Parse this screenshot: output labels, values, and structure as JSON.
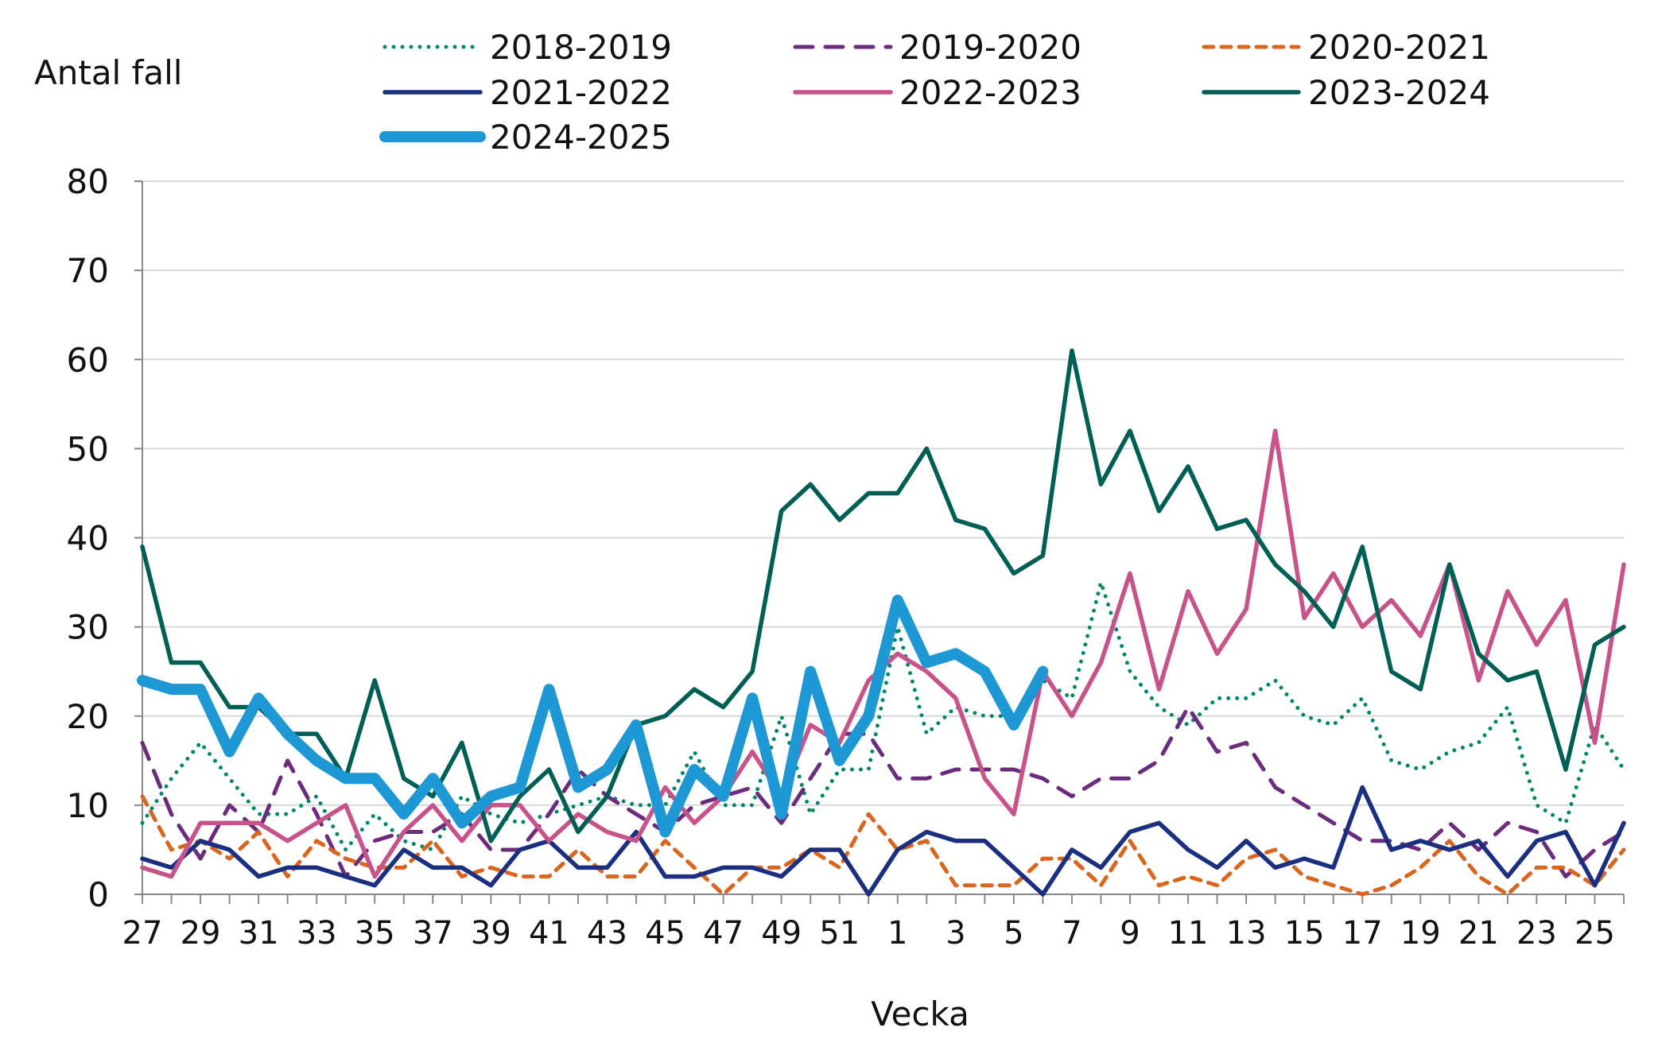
{
  "chart_data": {
    "type": "line",
    "title": "",
    "xlabel": "Vecka",
    "ylabel": "Antal fall",
    "ylim": [
      0,
      80
    ],
    "yticks": [
      0,
      10,
      20,
      30,
      40,
      50,
      60,
      70,
      80
    ],
    "grid": "horizontal",
    "legend_position": "top",
    "weeks": [
      27,
      28,
      29,
      30,
      31,
      32,
      33,
      34,
      35,
      36,
      37,
      38,
      39,
      40,
      41,
      42,
      43,
      44,
      45,
      46,
      47,
      48,
      49,
      50,
      51,
      52,
      1,
      2,
      3,
      4,
      5,
      6,
      7,
      8,
      9,
      10,
      11,
      12,
      13,
      14,
      15,
      16,
      17,
      18,
      19,
      20,
      21,
      22,
      23,
      24,
      25,
      26
    ],
    "xtick_labels": [
      "27",
      "29",
      "31",
      "33",
      "35",
      "37",
      "39",
      "41",
      "43",
      "45",
      "47",
      "49",
      "51",
      "1",
      "3",
      "5",
      "7",
      "9",
      "11",
      "13",
      "15",
      "17",
      "19",
      "21",
      "23",
      "25"
    ],
    "series": [
      {
        "name": "2018-2019",
        "color": "#00866B",
        "style": "dotted",
        "values": [
          8,
          13,
          17,
          13,
          9,
          9,
          11,
          5,
          9,
          6,
          5,
          11,
          9,
          8,
          9,
          10,
          11,
          10,
          10,
          16,
          10,
          10,
          20,
          9,
          14,
          14,
          30,
          18,
          21,
          20,
          20,
          24,
          22,
          35,
          25,
          21,
          19,
          22,
          22,
          24,
          20,
          19,
          22,
          15,
          14,
          16,
          17,
          21,
          10,
          8,
          19,
          14
        ]
      },
      {
        "name": "2019-2020",
        "color": "#6C2C7E",
        "style": "dashed",
        "values": [
          17,
          9,
          4,
          10,
          7,
          15,
          9,
          2,
          6,
          7,
          7,
          9,
          5,
          5,
          9,
          14,
          11,
          9,
          7,
          10,
          11,
          12,
          8,
          13,
          18,
          18,
          13,
          13,
          14,
          14,
          14,
          13,
          11,
          13,
          13,
          15,
          21,
          16,
          17,
          12,
          10,
          8,
          6,
          6,
          5,
          8,
          5,
          8,
          7,
          2,
          5,
          7
        ]
      },
      {
        "name": "2020-2021",
        "color": "#D9661F",
        "style": "short-dashed",
        "values": [
          11,
          5,
          6,
          4,
          7,
          2,
          6,
          4,
          3,
          3,
          6,
          2,
          3,
          2,
          2,
          5,
          2,
          2,
          6,
          3,
          0,
          3,
          3,
          5,
          3,
          9,
          5,
          6,
          1,
          1,
          1,
          4,
          4,
          1,
          6,
          1,
          2,
          1,
          4,
          5,
          2,
          1,
          0,
          1,
          3,
          6,
          2,
          0,
          3,
          3,
          1,
          5
        ]
      },
      {
        "name": "2021-2022",
        "color": "#1B2F80",
        "style": "solid",
        "values": [
          4,
          3,
          6,
          5,
          2,
          3,
          3,
          2,
          1,
          5,
          3,
          3,
          1,
          5,
          6,
          3,
          3,
          7,
          2,
          2,
          3,
          3,
          2,
          5,
          5,
          0,
          5,
          7,
          6,
          6,
          3,
          0,
          5,
          3,
          7,
          8,
          5,
          3,
          6,
          3,
          4,
          3,
          12,
          5,
          6,
          5,
          6,
          2,
          6,
          7,
          1,
          8
        ]
      },
      {
        "name": "2022-2023",
        "color": "#C8528A",
        "style": "solid",
        "values": [
          3,
          2,
          8,
          8,
          8,
          6,
          8,
          10,
          2,
          7,
          10,
          6,
          10,
          10,
          6,
          9,
          7,
          6,
          12,
          8,
          11,
          16,
          11,
          19,
          17,
          24,
          27,
          25,
          22,
          13,
          9,
          25,
          20,
          26,
          36,
          23,
          34,
          27,
          32,
          52,
          31,
          36,
          30,
          33,
          29,
          37,
          24,
          34,
          28,
          33,
          17,
          37
        ]
      },
      {
        "name": "2023-2024",
        "color": "#005F55",
        "style": "solid",
        "values": [
          39,
          26,
          26,
          21,
          21,
          18,
          18,
          13,
          24,
          13,
          11,
          17,
          6,
          11,
          14,
          7,
          11,
          19,
          20,
          23,
          21,
          25,
          43,
          46,
          42,
          45,
          45,
          50,
          42,
          41,
          36,
          38,
          61,
          46,
          52,
          43,
          48,
          41,
          42,
          37,
          34,
          30,
          39,
          25,
          23,
          37,
          27,
          24,
          25,
          14,
          28,
          30
        ]
      },
      {
        "name": "2024-2025",
        "color": "#1E98D5",
        "style": "thick",
        "values": [
          24,
          23,
          23,
          16,
          22,
          18,
          15,
          13,
          13,
          9,
          13,
          8,
          11,
          12,
          23,
          12,
          14,
          19,
          7,
          14,
          11,
          22,
          9,
          25,
          15,
          20,
          33,
          26,
          27,
          25,
          19,
          25
        ]
      }
    ]
  }
}
